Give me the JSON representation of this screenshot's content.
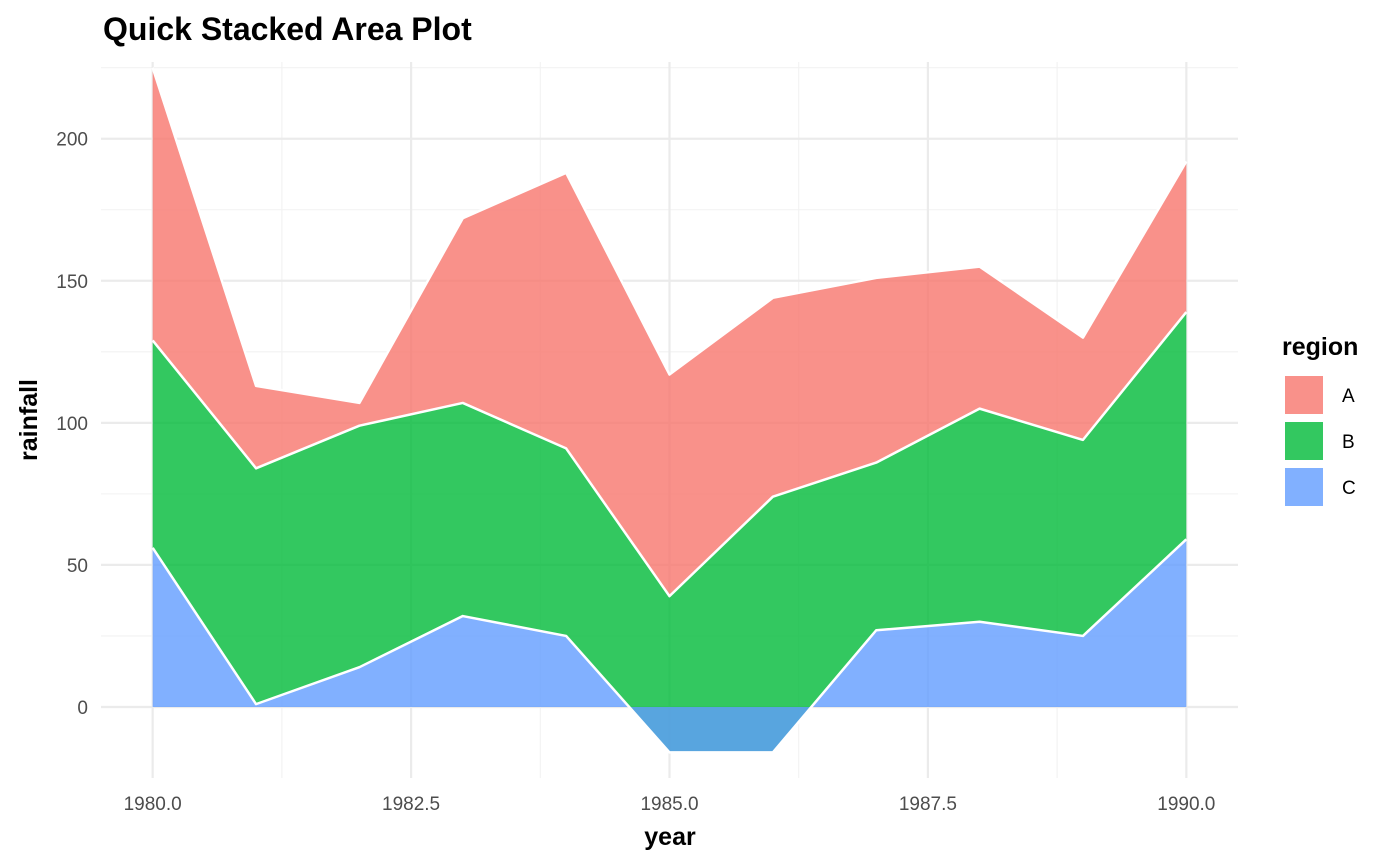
{
  "chart_data": {
    "type": "area",
    "stacked": true,
    "title": "Quick Stacked Area Plot",
    "xlabel": "year",
    "ylabel": "rainfall",
    "x": [
      1980,
      1981,
      1982,
      1983,
      1984,
      1985,
      1986,
      1987,
      1988,
      1989,
      1990
    ],
    "xlim": [
      1979.5,
      1990.5
    ],
    "ylim": [
      -25,
      227
    ],
    "x_ticks": [
      1980.0,
      1982.5,
      1985.0,
      1987.5,
      1990.0
    ],
    "x_tick_labels": [
      "1980.0",
      "1982.5",
      "1985.0",
      "1987.5",
      "1990.0"
    ],
    "y_ticks": [
      0,
      50,
      100,
      150,
      200
    ],
    "y_tick_labels": [
      "0",
      "50",
      "100",
      "150",
      "200"
    ],
    "grid": true,
    "legend": {
      "title": "region",
      "placement": "right"
    },
    "series": [
      {
        "name": "A",
        "color": "#F8766D",
        "values": [
          96,
          29,
          8,
          65,
          97,
          78,
          70,
          65,
          50,
          36,
          53
        ]
      },
      {
        "name": "B",
        "color": "#00BA38",
        "values": [
          73,
          83,
          85,
          75,
          66,
          55,
          90,
          59,
          75,
          69,
          80
        ]
      },
      {
        "name": "C",
        "color": "#619CFF",
        "values": [
          56,
          1,
          14,
          32,
          25,
          -16,
          -16,
          27,
          30,
          25,
          59
        ]
      }
    ]
  }
}
